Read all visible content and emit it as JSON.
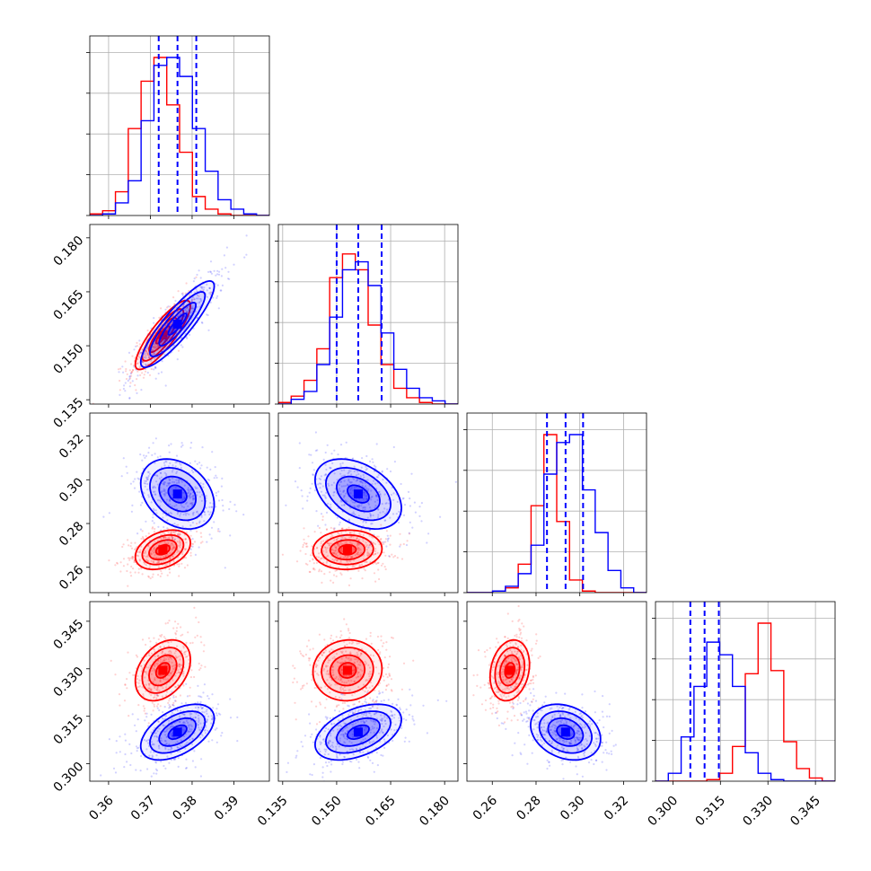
{
  "chart_data": {
    "type": "corner",
    "params": [
      {
        "ticks": [
          0.36,
          0.37,
          0.38,
          0.39
        ],
        "tick_labels": [
          "0.36",
          "0.37",
          "0.38",
          "0.39"
        ],
        "range": [
          0.3555,
          0.3985
        ]
      },
      {
        "ticks": [
          0.135,
          0.15,
          0.165,
          0.18
        ],
        "tick_labels": [
          "0.135",
          "0.150",
          "0.165",
          "0.180"
        ],
        "range": [
          0.1338,
          0.1837
        ]
      },
      {
        "ticks": [
          0.26,
          0.28,
          0.3,
          0.32
        ],
        "tick_labels": [
          "0.26",
          "0.28",
          "0.30",
          "0.32"
        ],
        "range": [
          0.2484,
          0.3305
        ]
      },
      {
        "ticks": [
          0.3,
          0.315,
          0.33,
          0.345
        ],
        "tick_labels": [
          "0.300",
          "0.315",
          "0.330",
          "0.345"
        ],
        "range": [
          0.2945,
          0.3512
        ]
      }
    ],
    "series": [
      {
        "color": "#0000ff",
        "mean": [
          0.3765,
          0.156,
          0.2935,
          0.31
        ],
        "sd": [
          0.0044,
          0.006,
          0.008,
          0.0044
        ],
        "quantiles": [
          [
            0.372,
            0.3765,
            0.381
          ],
          [
            0.15,
            0.156,
            0.1625
          ],
          [
            0.285,
            0.2935,
            0.3015
          ],
          [
            0.3055,
            0.31,
            0.3145
          ]
        ]
      },
      {
        "color": "#ff0000",
        "mean": [
          0.373,
          0.153,
          0.268,
          0.3295
        ],
        "sd": [
          0.0033,
          0.0048,
          0.0045,
          0.0048
        ]
      }
    ],
    "correlations": {
      "blue": {
        "1-0": 0.88,
        "2-0": -0.3,
        "2-1": -0.4,
        "3-0": 0.5,
        "3-1": 0.45,
        "3-2": -0.25
      },
      "red": {
        "1-0": 0.85,
        "2-0": 0.35,
        "2-1": 0.05,
        "3-0": 0.35,
        "3-1": 0.05,
        "3-2": 0.2
      }
    },
    "histograms": {
      "blue": [
        [
          0.0,
          0.01,
          0.08,
          0.22,
          0.6,
          0.95,
          1.0,
          0.88,
          0.55,
          0.28,
          0.1,
          0.04,
          0.01,
          0.0
        ],
        [
          0.0,
          0.03,
          0.08,
          0.25,
          0.55,
          0.85,
          0.9,
          0.75,
          0.45,
          0.22,
          0.1,
          0.04,
          0.02,
          0.0
        ],
        [
          0.0,
          0.0,
          0.01,
          0.04,
          0.12,
          0.3,
          0.75,
          0.95,
          1.0,
          0.65,
          0.38,
          0.14,
          0.03,
          0.0
        ],
        [
          0.0,
          0.05,
          0.28,
          0.6,
          0.88,
          0.8,
          0.6,
          0.18,
          0.05,
          0.01,
          0.0,
          0.0,
          0.0,
          0.0
        ]
      ],
      "red": [
        [
          0.01,
          0.03,
          0.15,
          0.55,
          0.85,
          1.0,
          0.7,
          0.4,
          0.12,
          0.04,
          0.01,
          0.0,
          0.0,
          0.0
        ],
        [
          0.01,
          0.05,
          0.15,
          0.35,
          0.8,
          0.95,
          0.85,
          0.5,
          0.25,
          0.1,
          0.04,
          0.01,
          0.0,
          0.0
        ],
        [
          0.0,
          0.0,
          0.01,
          0.03,
          0.18,
          0.55,
          1.0,
          0.45,
          0.08,
          0.01,
          0.0,
          0.0,
          0.0,
          0.0
        ],
        [
          0.0,
          0.0,
          0.0,
          0.0,
          0.01,
          0.05,
          0.22,
          0.68,
          1.0,
          0.7,
          0.25,
          0.08,
          0.02,
          0.0
        ]
      ]
    },
    "grid": true,
    "xlabel": "",
    "ylabel": ""
  }
}
